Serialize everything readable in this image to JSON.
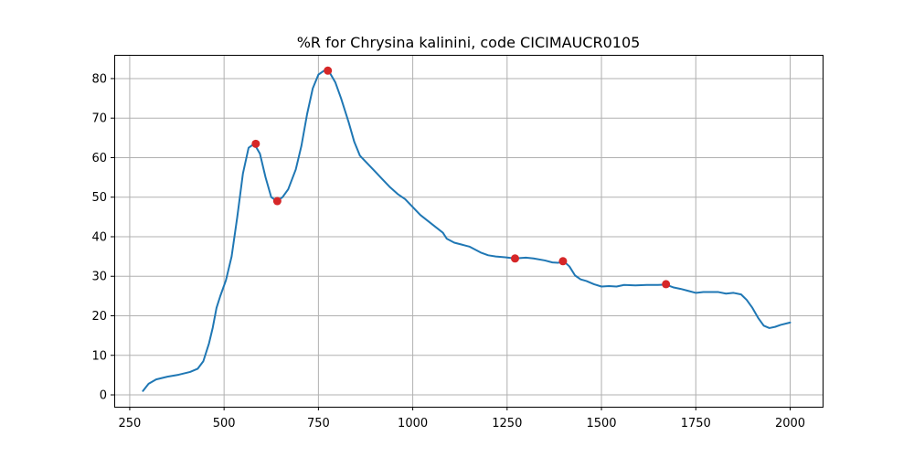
{
  "chart_data": {
    "type": "line",
    "title": "%R for Chrysina kalinini, code CICIMAUCR0105",
    "xlabel": "",
    "ylabel": "",
    "xlim": [
      209,
      2086
    ],
    "ylim": [
      -3,
      86
    ],
    "grid": true,
    "x_ticks": [
      250,
      500,
      750,
      1000,
      1250,
      1500,
      1750,
      2000
    ],
    "x_tick_labels": [
      "250",
      "500",
      "750",
      "1000",
      "1250",
      "1500",
      "1750",
      "2000"
    ],
    "y_ticks": [
      0,
      10,
      20,
      30,
      40,
      50,
      60,
      70,
      80
    ],
    "y_tick_labels": [
      "0",
      "10",
      "20",
      "30",
      "40",
      "50",
      "60",
      "70",
      "80"
    ],
    "line_color": "#1f77b4",
    "marker_color": "#d62728",
    "series": [
      {
        "values": [
          [
            285,
            1
          ],
          [
            300,
            2.8
          ],
          [
            320,
            3.9
          ],
          [
            350,
            4.6
          ],
          [
            380,
            5.1
          ],
          [
            410,
            5.8
          ],
          [
            430,
            6.6
          ],
          [
            445,
            8.5
          ],
          [
            460,
            13
          ],
          [
            470,
            17
          ],
          [
            480,
            22
          ],
          [
            490,
            25
          ],
          [
            505,
            29
          ],
          [
            520,
            35
          ],
          [
            535,
            45
          ],
          [
            550,
            56
          ],
          [
            565,
            62.5
          ],
          [
            580,
            63.5
          ],
          [
            595,
            61
          ],
          [
            610,
            55
          ],
          [
            625,
            50
          ],
          [
            640,
            49
          ],
          [
            655,
            50
          ],
          [
            670,
            52
          ],
          [
            690,
            57
          ],
          [
            705,
            63
          ],
          [
            720,
            71
          ],
          [
            735,
            77.5
          ],
          [
            750,
            81
          ],
          [
            765,
            82
          ],
          [
            780,
            81.5
          ],
          [
            795,
            79
          ],
          [
            810,
            75
          ],
          [
            830,
            69
          ],
          [
            845,
            64
          ],
          [
            860,
            60.5
          ],
          [
            880,
            58.5
          ],
          [
            900,
            56.5
          ],
          [
            920,
            54.5
          ],
          [
            940,
            52.5
          ],
          [
            960,
            50.8
          ],
          [
            980,
            49.5
          ],
          [
            1000,
            47.5
          ],
          [
            1020,
            45.5
          ],
          [
            1040,
            44
          ],
          [
            1060,
            42.5
          ],
          [
            1080,
            41
          ],
          [
            1090,
            39.5
          ],
          [
            1110,
            38.5
          ],
          [
            1130,
            38
          ],
          [
            1150,
            37.5
          ],
          [
            1180,
            36
          ],
          [
            1200,
            35.3
          ],
          [
            1220,
            35
          ],
          [
            1245,
            34.8
          ],
          [
            1270,
            34.5
          ],
          [
            1300,
            34.7
          ],
          [
            1320,
            34.5
          ],
          [
            1350,
            34
          ],
          [
            1370,
            33.5
          ],
          [
            1385,
            33.4
          ],
          [
            1400,
            33.8
          ],
          [
            1415,
            32.5
          ],
          [
            1430,
            30.2
          ],
          [
            1445,
            29.2
          ],
          [
            1460,
            28.8
          ],
          [
            1480,
            28
          ],
          [
            1500,
            27.4
          ],
          [
            1520,
            27.5
          ],
          [
            1540,
            27.4
          ],
          [
            1560,
            27.8
          ],
          [
            1590,
            27.7
          ],
          [
            1620,
            27.8
          ],
          [
            1650,
            27.8
          ],
          [
            1670,
            27.9
          ],
          [
            1690,
            27.2
          ],
          [
            1710,
            26.8
          ],
          [
            1730,
            26.3
          ],
          [
            1750,
            25.8
          ],
          [
            1770,
            26
          ],
          [
            1790,
            26
          ],
          [
            1810,
            26
          ],
          [
            1830,
            25.6
          ],
          [
            1850,
            25.8
          ],
          [
            1870,
            25.4
          ],
          [
            1885,
            24
          ],
          [
            1900,
            22
          ],
          [
            1915,
            19.5
          ],
          [
            1930,
            17.5
          ],
          [
            1945,
            16.9
          ],
          [
            1960,
            17.2
          ],
          [
            1975,
            17.7
          ],
          [
            2000,
            18.3
          ]
        ]
      }
    ],
    "markers": [
      [
        584,
        63.5
      ],
      [
        641,
        49
      ],
      [
        775,
        82
      ],
      [
        1271,
        34.5
      ],
      [
        1398,
        33.8
      ],
      [
        1671,
        28
      ]
    ]
  }
}
